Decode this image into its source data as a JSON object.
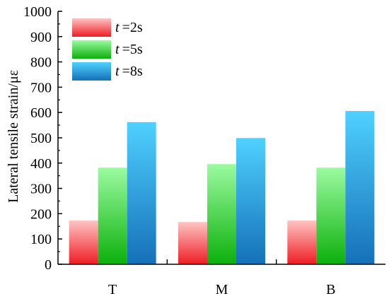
{
  "chart_data": {
    "type": "bar",
    "title": "",
    "xlabel": "",
    "ylabel": "Lateral tensile strain/με",
    "ylim": [
      0,
      1000
    ],
    "yticks": [
      0,
      100,
      200,
      300,
      400,
      500,
      600,
      700,
      800,
      900,
      1000
    ],
    "categories": [
      "T",
      "M",
      "B"
    ],
    "series": [
      {
        "name_var": "t",
        "name_value": "=2s",
        "values": [
          173,
          167,
          173
        ],
        "color_top": "#ffc4c4",
        "color_bottom": "#ee1c24"
      },
      {
        "name_var": "t",
        "name_value": "=5s",
        "values": [
          382,
          396,
          382
        ],
        "color_top": "#9bfba0",
        "color_bottom": "#0cb00c"
      },
      {
        "name_var": "t",
        "name_value": "=8s",
        "values": [
          562,
          499,
          606
        ],
        "color_top": "#4fd1ff",
        "color_bottom": "#1570b8"
      }
    ],
    "legend_position": "top-left",
    "grid": false
  }
}
